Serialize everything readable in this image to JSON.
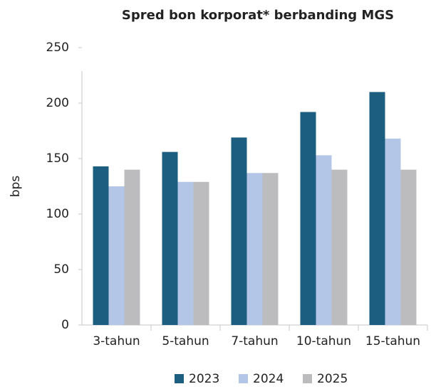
{
  "chart_data": {
    "type": "bar",
    "title": "Spred bon korporat* berbanding MGS",
    "y_label": "bps",
    "categories": [
      "3-tahun",
      "5-tahun",
      "7-tahun",
      "10-tahun",
      "15-tahun"
    ],
    "series": [
      {
        "name": "2023",
        "color": "#1b5e80",
        "values": [
          143,
          156,
          169,
          192,
          210
        ]
      },
      {
        "name": "2024",
        "color": "#b3c6e7",
        "values": [
          125,
          129,
          137,
          153,
          168
        ]
      },
      {
        "name": "2025",
        "color": "#bcbcbe",
        "values": [
          140,
          129,
          137,
          140,
          140
        ]
      }
    ],
    "ylim": [
      0,
      250
    ],
    "yticks": [
      0,
      50,
      100,
      150,
      200,
      250
    ],
    "grid": false
  }
}
